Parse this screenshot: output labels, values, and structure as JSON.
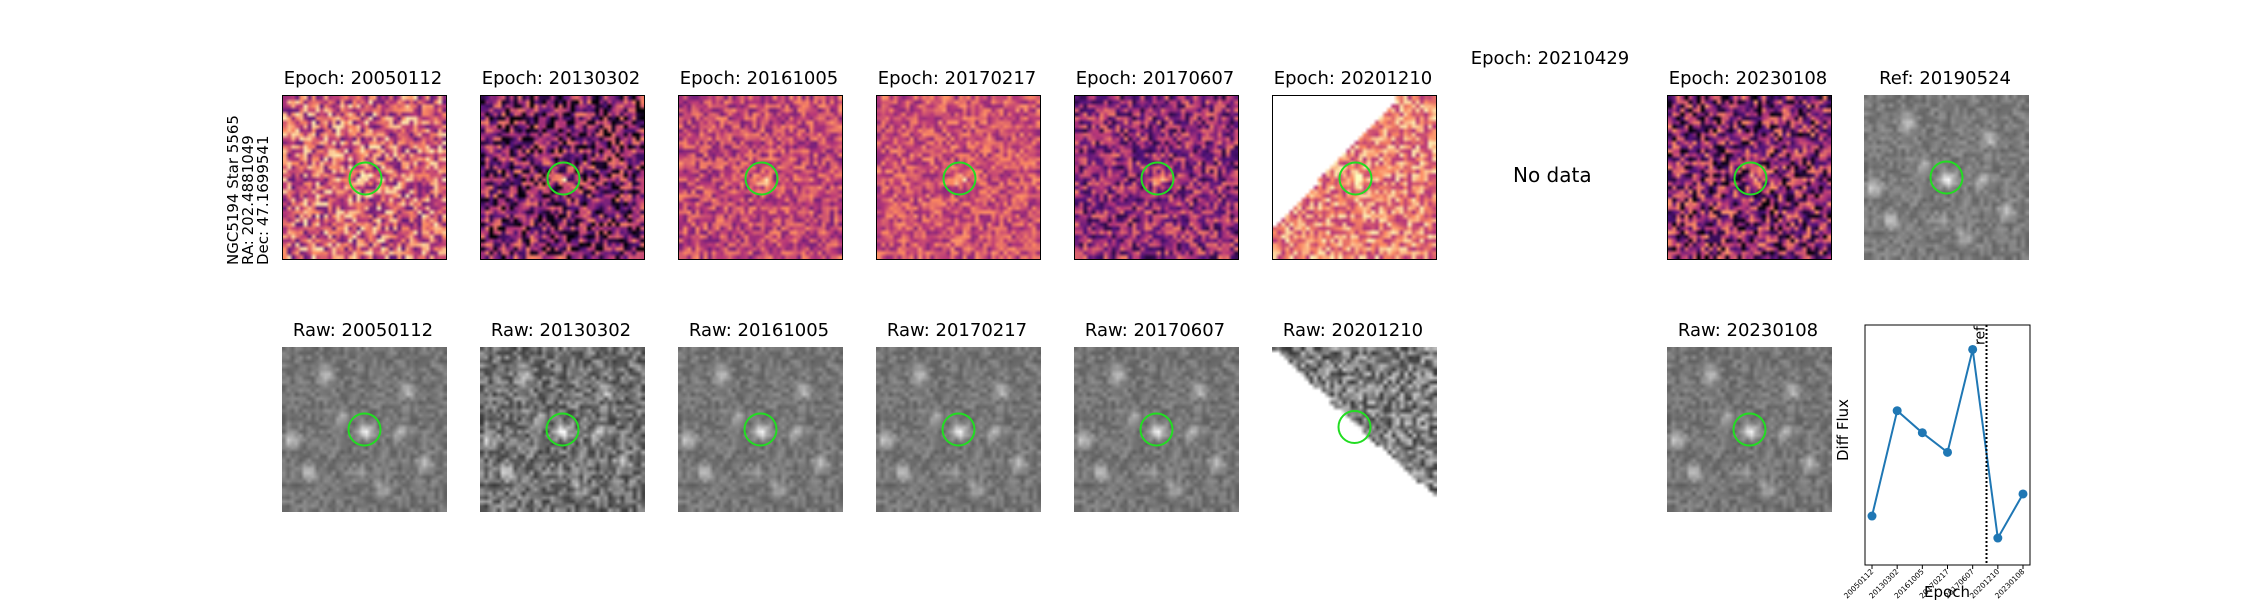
{
  "figure": {
    "star_label": "NGC5194 Star 5565",
    "ra_label": "RA: 202.4881049",
    "dec_label": "Dec: 47.1699541",
    "diff_titles": [
      "Epoch: 20050112",
      "Epoch: 20130302",
      "Epoch: 20161005",
      "Epoch: 20170217",
      "Epoch: 20170607",
      "Epoch: 20201210",
      "Epoch: 20210429",
      "Epoch: 20230108"
    ],
    "ref_title": "Ref: 20190524",
    "no_data_text": "No data",
    "raw_titles": [
      "Raw: 20050112",
      "Raw: 20130302",
      "Raw: 20161005",
      "Raw: 20170217",
      "Raw: 20170607",
      "Raw: 20201210",
      "Raw: 20230108"
    ],
    "marker_color": "#22dd22",
    "cmap_diff": "magma",
    "cmap_raw": "gray"
  },
  "chart_data": {
    "type": "line",
    "categories": [
      "20050112",
      "20130302",
      "20161005",
      "20170217",
      "20170607",
      "20201210",
      "20230108"
    ],
    "values": [
      0.12,
      0.55,
      0.46,
      0.38,
      0.8,
      0.03,
      0.21
    ],
    "xlabel": "Epoch",
    "ylabel": "Diff Flux",
    "ref_marker": {
      "label": "ref",
      "position_between": [
        "20170607",
        "20201210"
      ],
      "fraction": 0.55
    },
    "color": "#1f77b4",
    "grid": false,
    "ylim": [
      -0.08,
      0.9
    ]
  }
}
